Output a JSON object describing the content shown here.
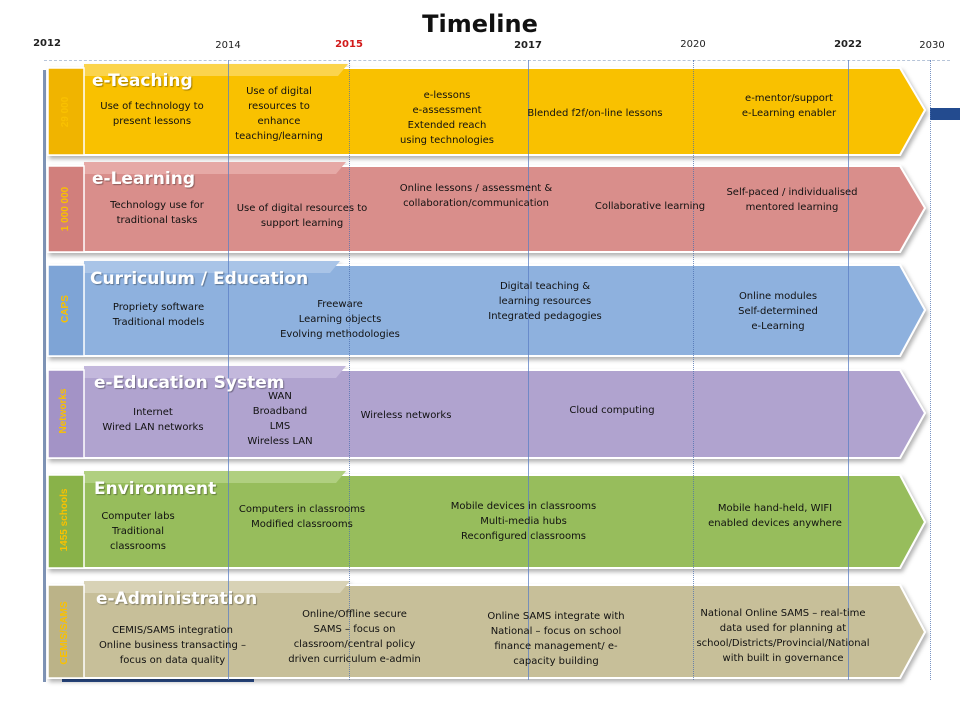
{
  "title": "Timeline",
  "years": {
    "y2012": "2012",
    "y2014": "2014",
    "y2015": "2015",
    "y2017": "2017",
    "y2020": "2020",
    "y2022": "2022",
    "y2030": "2030"
  },
  "colors": {
    "teaching": "#f9c100",
    "learning": "#d98e8b",
    "curriculum": "#8eb1de",
    "system": "#b0a3cf",
    "environment": "#97bd5c",
    "administration": "#c7bf99",
    "red_year": "#d21a1a"
  },
  "lanes": {
    "teaching": {
      "title": "e-Teaching",
      "side": "29 000",
      "i1": [
        "Use of technology to",
        "present lessons"
      ],
      "i2": [
        "Use of digital",
        "resources to",
        "enhance",
        "teaching/learning"
      ],
      "i3": [
        "e-lessons",
        "e-assessment",
        "Extended reach",
        "using technologies"
      ],
      "i4": [
        "Blended f2f/on-line lessons"
      ],
      "i5": [
        "e-mentor/support",
        "e-Learning  enabler"
      ]
    },
    "learning": {
      "title": "e-Learning",
      "side": "1 000 000",
      "i1": [
        "Technology use for",
        "traditional tasks"
      ],
      "i2": [
        "Use of digital resources to",
        "support learning"
      ],
      "i3": [
        "Online lessons / assessment &",
        "collaboration/communication"
      ],
      "i4": [
        "Collaborative  learning"
      ],
      "i5": [
        "Self-paced / individualised",
        "mentored learning"
      ]
    },
    "curriculum": {
      "title": "Curriculum / Education",
      "side": "CAPS",
      "i1": [
        "Propriety software",
        "Traditional  models"
      ],
      "i2": [
        "Freeware",
        "Learning objects",
        "Evolving methodologies"
      ],
      "i3": [
        "Digital teaching &",
        "learning resources",
        "Integrated  pedagogies"
      ],
      "i4": [
        "Online modules",
        "Self-determined",
        "e-Learning"
      ]
    },
    "system": {
      "title": "e-Education  System",
      "side": "Networks",
      "i1": [
        "Internet",
        "Wired LAN networks"
      ],
      "i2": [
        "WAN",
        "Broadband",
        "LMS",
        "Wireless LAN"
      ],
      "i3": [
        "Wireless networks"
      ],
      "i4": [
        "Cloud computing"
      ]
    },
    "environment": {
      "title": "Environment",
      "side": "1455 schools",
      "i1": [
        "Computer  labs",
        "Traditional",
        "classrooms"
      ],
      "i2": [
        "Computers in classrooms",
        "Modified  classrooms"
      ],
      "i3": [
        "Mobile  devices in classrooms",
        "Multi-media hubs",
        "Reconfigured classrooms"
      ],
      "i4": [
        "Mobile hand-held, WIFI",
        "enabled devices anywhere"
      ]
    },
    "administration": {
      "title": "e-Administration",
      "side": "CEMIS/SAMS",
      "i1": [
        "CEMIS/SAMS  integration",
        "Online business transacting –",
        "focus on data quality"
      ],
      "i2": [
        "Online/Offline secure",
        "SAMS – focus on",
        "classroom/central policy",
        "driven curriculum e-admin"
      ],
      "i3": [
        "Online SAMS integrate with",
        "National  – focus on school",
        "finance management/ e-",
        "capacity building"
      ],
      "i4": [
        "National  Online  SAMS –  real-time",
        "data used for planning at",
        "school/Districts/Provincial/National",
        "with built in governance"
      ]
    }
  }
}
